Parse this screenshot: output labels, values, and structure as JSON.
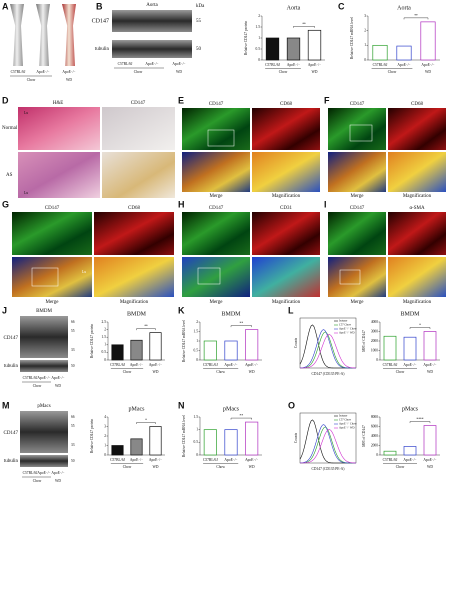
{
  "figure": {
    "panel_letters": [
      "A",
      "B",
      "C",
      "D",
      "E",
      "F",
      "G",
      "H",
      "I",
      "J",
      "K",
      "L",
      "M",
      "N",
      "O"
    ],
    "A": {
      "samples": [
        "C57BL/6J",
        "ApoE⁻/⁻",
        "ApoE⁻/⁻"
      ],
      "groups": [
        "Chow",
        "WD"
      ]
    },
    "B": {
      "title": "Aorta",
      "bands": [
        "CD147",
        "tubulin"
      ],
      "unit": "kDa",
      "markers": [
        "55",
        "50"
      ],
      "samples": [
        "C57BL/6J",
        "ApoE⁻/⁻",
        "ApoE⁻/⁻"
      ],
      "groups": [
        "Chow",
        "WD"
      ]
    },
    "D": {
      "columns": [
        "H&E",
        "CD147"
      ],
      "rows": [
        "Normal",
        "AS"
      ],
      "lumen": [
        "Lu",
        "Lu"
      ]
    },
    "E": {
      "channels": [
        "CD147",
        "CD68"
      ],
      "bottom": [
        "Merge",
        "Magnification"
      ]
    },
    "F": {
      "channels": [
        "CD147",
        "CD68"
      ],
      "bottom": [
        "Merge",
        "Magnification"
      ]
    },
    "G": {
      "channels": [
        "CD147",
        "CD68"
      ],
      "bottom": [
        "Merge",
        "Magnification"
      ],
      "lumen": "Lu"
    },
    "H": {
      "channels": [
        "CD147",
        "CD31"
      ],
      "bottom": [
        "Merge",
        "Magnification"
      ]
    },
    "I": {
      "channels": [
        "CD147",
        "α-SMA"
      ],
      "bottom": [
        "Merge",
        "Magnification"
      ]
    },
    "J": {
      "title": "BMDM",
      "bands": [
        "CD147",
        "tubulin"
      ],
      "markers": [
        "66",
        "55",
        "33",
        "50"
      ],
      "samples": [
        "C57BL/6J",
        "ApoE⁻/⁻",
        "ApoE⁻/⁻"
      ],
      "groups": [
        "Chow",
        "WD"
      ]
    },
    "L": {
      "legend": [
        "Isotype",
        "C57 Chow",
        "ApoE⁻/⁻ Chow",
        "ApoE⁻/⁻ WD"
      ],
      "x_label": "CD147 (CD135 PE-A)",
      "y_label": "Counts"
    },
    "M": {
      "title": "pMacs",
      "bands": [
        "CD147",
        "tubulin"
      ],
      "markers": [
        "66",
        "55",
        "33",
        "50"
      ],
      "samples": [
        "C57BL/6J",
        "ApoE⁻/⁻",
        "ApoE⁻/⁻"
      ],
      "groups": [
        "Chow",
        "WD"
      ]
    },
    "O": {
      "legend": [
        "Isotype",
        "C57 Chow",
        "ApoE⁻/⁻ Chow",
        "ApoE⁻/⁻ WD"
      ],
      "x_label": "CD147 (CD135 PE-A)",
      "y_label": "Counts"
    }
  },
  "chart_data": [
    {
      "type": "bar",
      "title": "Aorta",
      "y_label": "Relative CD147 protein",
      "categories": [
        "C57BL/6J",
        "ApoE⁻/⁻",
        "ApoE⁻/⁻"
      ],
      "groups": [
        "Chow",
        "WD"
      ],
      "values": [
        1.0,
        1.0,
        1.35
      ],
      "colors": [
        "#111111",
        "#888888",
        "#ffffff"
      ],
      "edge_colors": [
        "#111111",
        "#111111",
        "#111111"
      ],
      "ylim": [
        0,
        2
      ],
      "yticks": [
        0,
        0.5,
        1,
        1.5,
        2
      ],
      "significance": "**"
    },
    {
      "type": "bar",
      "title": "Aorta",
      "y_label": "Relative CD147 mRNA level",
      "categories": [
        "C57BL/6J",
        "ApoE⁻/⁻",
        "ApoE⁻/⁻"
      ],
      "groups": [
        "Chow",
        "WD"
      ],
      "values": [
        1.0,
        0.95,
        2.6
      ],
      "colors": [
        "#ffffff",
        "#ffffff",
        "#ffffff"
      ],
      "edge_colors": [
        "#2ca02c",
        "#3344cc",
        "#b030c0"
      ],
      "ylim": [
        0,
        3
      ],
      "yticks": [
        0,
        1,
        2,
        3
      ],
      "significance": "**"
    },
    {
      "type": "bar",
      "title": "BMDM",
      "y_label": "Relative CD147 protein",
      "categories": [
        "C57BL/6J",
        "ApoE⁻/⁻",
        "ApoE⁻/⁻"
      ],
      "groups": [
        "Chow",
        "WD"
      ],
      "values": [
        1.0,
        1.3,
        1.8
      ],
      "colors": [
        "#111111",
        "#888888",
        "#ffffff"
      ],
      "edge_colors": [
        "#111111",
        "#111111",
        "#111111"
      ],
      "ylim": [
        0,
        2.5
      ],
      "yticks": [
        0,
        0.5,
        1,
        1.5,
        2,
        2.5
      ],
      "significance": "**"
    },
    {
      "type": "bar",
      "title": "BMDM",
      "y_label": "Relative CD147 mRNA level",
      "categories": [
        "C57BL/6J",
        "ApoE⁻/⁻",
        "ApoE⁻/⁻"
      ],
      "groups": [
        "Chow",
        "WD"
      ],
      "values": [
        1.0,
        1.0,
        1.6
      ],
      "colors": [
        "#ffffff",
        "#ffffff",
        "#ffffff"
      ],
      "edge_colors": [
        "#2ca02c",
        "#3344cc",
        "#b030c0"
      ],
      "ylim": [
        0,
        2
      ],
      "yticks": [
        0,
        0.5,
        1,
        1.5,
        2
      ],
      "significance": "**"
    },
    {
      "type": "bar",
      "title": "BMDM",
      "y_label": "MFI of CD147",
      "categories": [
        "C57BL/6J",
        "ApoE⁻/⁻",
        "ApoE⁻/⁻"
      ],
      "groups": [
        "Chow",
        "WD"
      ],
      "values": [
        2500,
        2400,
        3000
      ],
      "colors": [
        "#ffffff",
        "#ffffff",
        "#ffffff"
      ],
      "edge_colors": [
        "#2ca02c",
        "#3344cc",
        "#b030c0"
      ],
      "ylim": [
        0,
        4000
      ],
      "yticks": [
        0,
        1000,
        2000,
        3000,
        4000
      ],
      "significance": "*"
    },
    {
      "type": "bar",
      "title": "pMacs",
      "y_label": "Relative CD147 protein",
      "categories": [
        "C57BL/6J",
        "ApoE⁻/⁻",
        "ApoE⁻/⁻"
      ],
      "groups": [
        "Chow",
        "WD"
      ],
      "values": [
        1.0,
        1.7,
        3.0
      ],
      "colors": [
        "#111111",
        "#888888",
        "#ffffff"
      ],
      "edge_colors": [
        "#111111",
        "#111111",
        "#111111"
      ],
      "ylim": [
        0,
        4
      ],
      "yticks": [
        0,
        1,
        2,
        3,
        4
      ],
      "significance": "*"
    },
    {
      "type": "bar",
      "title": "pMacs",
      "y_label": "Relative CD147 mRNA level",
      "categories": [
        "C57BL/6J",
        "ApoE⁻/⁻",
        "ApoE⁻/⁻"
      ],
      "groups": [
        "Chow",
        "WD"
      ],
      "values": [
        1.0,
        1.0,
        1.3
      ],
      "colors": [
        "#ffffff",
        "#ffffff",
        "#ffffff"
      ],
      "edge_colors": [
        "#2ca02c",
        "#3344cc",
        "#b030c0"
      ],
      "ylim": [
        0,
        1.5
      ],
      "yticks": [
        0,
        0.5,
        1,
        1.5
      ],
      "significance": "**"
    },
    {
      "type": "bar",
      "title": "pMacs",
      "y_label": "MFI of CD147",
      "categories": [
        "C57BL/6J",
        "ApoE⁻/⁻",
        "ApoE⁻/⁻"
      ],
      "groups": [
        "Chow",
        "WD"
      ],
      "values": [
        800,
        1800,
        6200
      ],
      "colors": [
        "#ffffff",
        "#ffffff",
        "#ffffff"
      ],
      "edge_colors": [
        "#2ca02c",
        "#3344cc",
        "#b030c0"
      ],
      "ylim": [
        0,
        8000
      ],
      "yticks": [
        0,
        2000,
        4000,
        6000,
        8000
      ],
      "significance": "****"
    }
  ]
}
